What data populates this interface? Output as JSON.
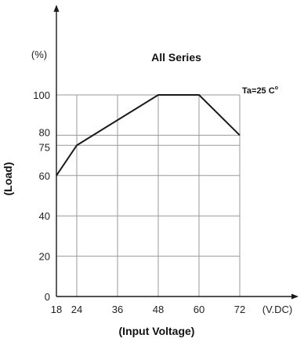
{
  "chart_data": {
    "type": "line",
    "title": "All Series",
    "xlabel": "(Input Voltage)",
    "ylabel": "(Load)",
    "x_unit": "(V.DC)",
    "y_unit": "(%)",
    "annotation": {
      "text": "Ta=25 C",
      "sup": "o"
    },
    "xlim": [
      18,
      72
    ],
    "ylim": [
      0,
      100
    ],
    "x_ticks": [
      18,
      24,
      36,
      48,
      60,
      72
    ],
    "y_ticks": [
      0,
      20,
      40,
      60,
      75,
      80,
      100
    ],
    "x_tick_labels": [
      "18",
      "24",
      "36",
      "48",
      "60",
      "72"
    ],
    "y_tick_labels": [
      "0",
      "20",
      "40",
      "60",
      "75",
      "80",
      "100"
    ],
    "grid": true,
    "series": [
      {
        "x": [
          18,
          24,
          48,
          60,
          72
        ],
        "y": [
          60,
          75,
          100,
          100,
          80
        ]
      }
    ]
  },
  "colors": {
    "line": "#1a1a1a",
    "grid": "#999999",
    "axis": "#1a1a1a"
  }
}
